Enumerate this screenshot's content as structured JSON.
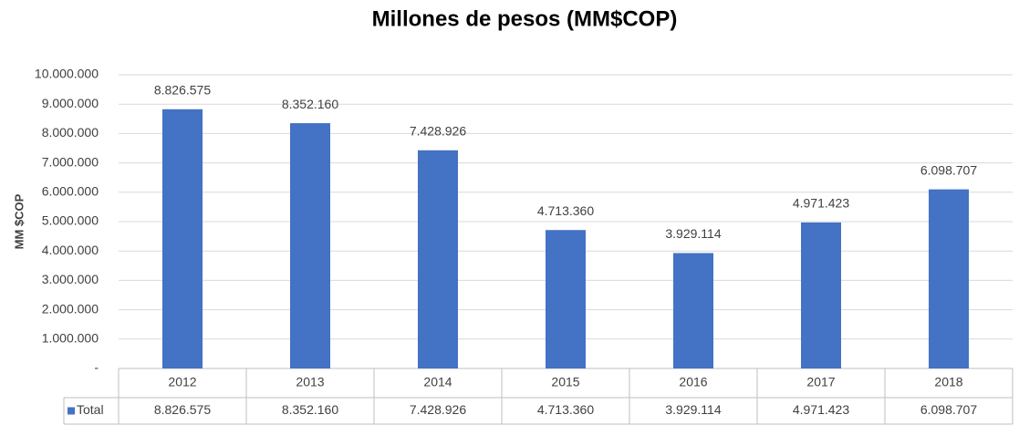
{
  "chart_data": {
    "type": "bar",
    "title": "Millones de pesos (MM$COP)",
    "y_label": "MM $COP",
    "categories": [
      "2012",
      "2013",
      "2014",
      "2015",
      "2016",
      "2017",
      "2018"
    ],
    "series": [
      {
        "name": "Total",
        "color": "#4472c4",
        "values": [
          8826575,
          8352160,
          7428926,
          4713360,
          3929114,
          4971423,
          6098707
        ],
        "value_labels": [
          "8.826.575",
          "8.352.160",
          "7.428.926",
          "4.713.360",
          "3.929.114",
          "4.971.423",
          "6.098.707"
        ]
      }
    ],
    "ylim": [
      0,
      10000000
    ],
    "yticks": [
      {
        "value": 0,
        "label": "-"
      },
      {
        "value": 1000000,
        "label": "1.000.000"
      },
      {
        "value": 2000000,
        "label": "2.000.000"
      },
      {
        "value": 3000000,
        "label": "3.000.000"
      },
      {
        "value": 4000000,
        "label": "4.000.000"
      },
      {
        "value": 5000000,
        "label": "5.000.000"
      },
      {
        "value": 6000000,
        "label": "6.000.000"
      },
      {
        "value": 7000000,
        "label": "7.000.000"
      },
      {
        "value": 8000000,
        "label": "8.000.000"
      },
      {
        "value": 9000000,
        "label": "9.000.000"
      },
      {
        "value": 10000000,
        "label": "10.000.000"
      }
    ],
    "grid": true
  }
}
